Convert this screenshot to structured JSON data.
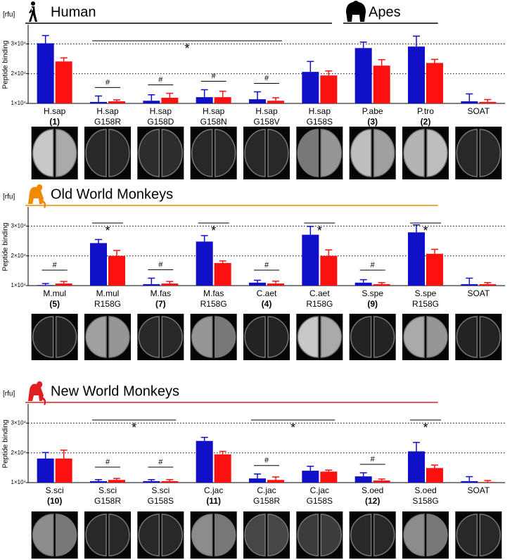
{
  "chart_data": [
    {
      "type": "bar",
      "ylabel": "Peptide binding",
      "yunit": "[rfu]",
      "groups": [
        {
          "name": "Human",
          "color": "#000000",
          "categories": [
            0,
            5
          ]
        },
        {
          "name": "Apes",
          "color": "#000000",
          "categories": [
            6,
            7
          ]
        }
      ],
      "categories": [
        [
          "H.sap",
          "(1)"
        ],
        [
          "H.sap",
          "G158R"
        ],
        [
          "H.sap",
          "G158D"
        ],
        [
          "H.sap",
          "G158N"
        ],
        [
          "H.sap",
          "G158V"
        ],
        [
          "H.sap",
          "G158S"
        ],
        [
          "P.abe",
          "(3)"
        ],
        [
          "P.tro",
          "(2)"
        ],
        [
          "SOAT",
          null
        ]
      ],
      "series": [
        {
          "color": "#1010c8",
          "values": [
            30200,
            10500,
            10900,
            12100,
            11400,
            20600,
            28600,
            29100,
            10700
          ],
          "errors": [
            2600,
            2000,
            2000,
            2500,
            2500,
            3500,
            2000,
            3500,
            2500
          ]
        },
        {
          "color": "#ff1010",
          "values": [
            24100,
            10700,
            11900,
            12100,
            10900,
            19400,
            22700,
            23600,
            10500
          ],
          "errors": [
            1200,
            500,
            1500,
            2000,
            1000,
            1500,
            2000,
            1200,
            800
          ]
        }
      ],
      "annotations": [
        {
          "text": "*",
          "categories": [
            1,
            4
          ]
        },
        {
          "text": "#",
          "categories": [
            1,
            1
          ]
        },
        {
          "text": "#",
          "categories": [
            2,
            2
          ]
        },
        {
          "text": "#",
          "categories": [
            3,
            3
          ]
        },
        {
          "text": "#",
          "categories": [
            4,
            4
          ]
        }
      ],
      "ylim": [
        10000,
        36000
      ],
      "yticks": [
        {
          "value": 10000,
          "label": "1×10⁴"
        },
        {
          "value": 20000,
          "label": "2×10⁴"
        },
        {
          "value": 30000,
          "label": "3×10⁴"
        }
      ],
      "grid": true
    },
    {
      "type": "bar",
      "ylabel": "Peptide binding",
      "yunit": "[rfu]",
      "groups": [
        {
          "name": "Old World Monkeys",
          "color": "#f08a00",
          "categories": [
            0,
            7
          ]
        }
      ],
      "categories": [
        [
          "M.mul",
          "(5)"
        ],
        [
          "M.mul",
          "R158G"
        ],
        [
          "M.fas",
          "(7)"
        ],
        [
          "M.fas",
          "R158G"
        ],
        [
          "C.aet",
          "(4)"
        ],
        [
          "C.aet",
          "R158G"
        ],
        [
          "S.spe",
          "(9)"
        ],
        [
          "S.spe",
          "R158G"
        ],
        [
          "SOAT",
          null
        ]
      ],
      "series": [
        {
          "color": "#1010c8",
          "values": [
            10200,
            24300,
            10500,
            24800,
            11000,
            27100,
            11000,
            27900,
            10500
          ],
          "errors": [
            500,
            1200,
            2000,
            2000,
            800,
            2800,
            1000,
            2500,
            2000
          ]
        },
        {
          "color": "#ff1010",
          "values": [
            10700,
            20000,
            10700,
            17600,
            10700,
            20000,
            10500,
            20700,
            10500
          ],
          "errors": [
            700,
            1800,
            700,
            700,
            800,
            2000,
            500,
            1500,
            500
          ]
        }
      ],
      "annotations": [
        {
          "text": "#",
          "categories": [
            0,
            0
          ]
        },
        {
          "text": "*",
          "categories": [
            1,
            1
          ]
        },
        {
          "text": "#",
          "categories": [
            2,
            2
          ]
        },
        {
          "text": "*",
          "categories": [
            3,
            3
          ]
        },
        {
          "text": "#",
          "categories": [
            4,
            4
          ]
        },
        {
          "text": "*",
          "categories": [
            5,
            5
          ]
        },
        {
          "text": "#",
          "categories": [
            6,
            6
          ]
        },
        {
          "text": "*",
          "categories": [
            7,
            7
          ]
        }
      ],
      "ylim": [
        10000,
        36000
      ],
      "yticks": [
        {
          "value": 10000,
          "label": "1×10⁴"
        },
        {
          "value": 20000,
          "label": "2×10⁴"
        },
        {
          "value": 30000,
          "label": "3×10⁴"
        }
      ],
      "grid": true
    },
    {
      "type": "bar",
      "ylabel": "Peptide binding",
      "yunit": "[rfu]",
      "groups": [
        {
          "name": "New World Monkeys",
          "color": "#e02020",
          "categories": [
            0,
            7
          ]
        }
      ],
      "categories": [
        [
          "S.sci",
          "(10)"
        ],
        [
          "S.sci",
          "G158R"
        ],
        [
          "S.sci",
          "G158S"
        ],
        [
          "C.jac",
          "(11)"
        ],
        [
          "C.jac",
          "G158R"
        ],
        [
          "C.jac",
          "G158S"
        ],
        [
          "S.oed",
          "(12)"
        ],
        [
          "S.oed",
          "S158G"
        ],
        [
          "SOAT",
          null
        ]
      ],
      "series": [
        {
          "color": "#1010c8",
          "values": [
            18100,
            10500,
            10500,
            24000,
            11400,
            14000,
            12100,
            20500,
            10500
          ],
          "errors": [
            2000,
            500,
            500,
            1200,
            1500,
            1500,
            1200,
            3000,
            1500
          ]
        },
        {
          "color": "#ff1010",
          "values": [
            18100,
            10900,
            10500,
            19500,
            10900,
            13700,
            10700,
            14900,
            10200
          ],
          "errors": [
            2800,
            500,
            500,
            1000,
            1000,
            500,
            500,
            1000,
            500
          ]
        }
      ],
      "annotations": [
        {
          "text": "*",
          "categories": [
            1,
            2
          ]
        },
        {
          "text": "*",
          "categories": [
            4,
            5
          ]
        },
        {
          "text": "*",
          "categories": [
            7,
            7
          ]
        },
        {
          "text": "#",
          "categories": [
            1,
            1
          ]
        },
        {
          "text": "#",
          "categories": [
            2,
            2
          ]
        },
        {
          "text": "#",
          "categories": [
            4,
            4
          ]
        },
        {
          "text": "#",
          "categories": [
            6,
            6
          ]
        }
      ],
      "ylim": [
        10000,
        36000
      ],
      "yticks": [
        {
          "value": 10000,
          "label": "1×10⁴"
        },
        {
          "value": 20000,
          "label": "2×10⁴"
        },
        {
          "value": 30000,
          "label": "3×10⁴"
        }
      ],
      "grid": true
    }
  ]
}
